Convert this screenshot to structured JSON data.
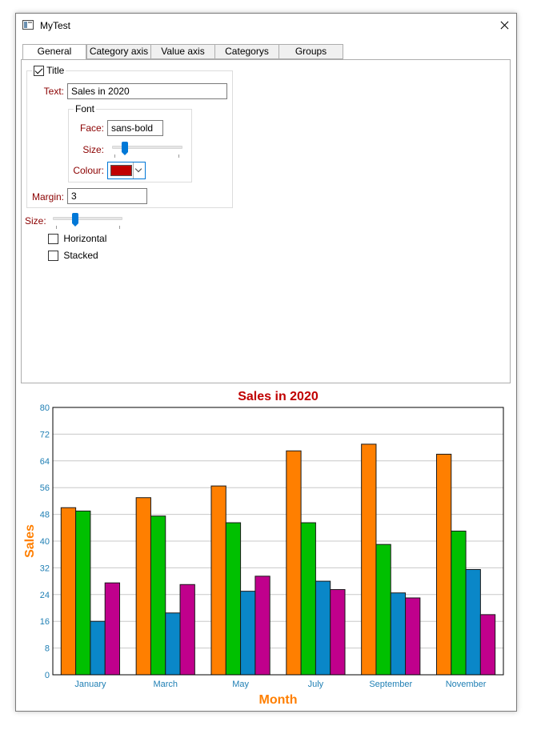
{
  "window": {
    "title": "MyTest"
  },
  "tabs": [
    {
      "label": "General"
    },
    {
      "label": "Category axis"
    },
    {
      "label": "Value axis"
    },
    {
      "label": "Categorys"
    },
    {
      "label": "Groups"
    }
  ],
  "title_group": {
    "checkbox_label": "Title",
    "checked": true,
    "text_label": "Text:",
    "text_value": "Sales in 2020",
    "font": {
      "group_label": "Font",
      "face_label": "Face:",
      "face_value": "sans-bold",
      "size_label": "Size:",
      "size_level": 0.15,
      "colour_label": "Colour:",
      "colour_value": "#c00000"
    },
    "margin_label": "Margin:",
    "margin_value": "3"
  },
  "size": {
    "label": "Size:",
    "level": 0.3
  },
  "horizontal": {
    "label": "Horizontal",
    "checked": false
  },
  "stacked": {
    "label": "Stacked",
    "checked": false
  },
  "colors": {
    "title": "#c00000",
    "axis_title": "#ff7f00",
    "tick_label": "#1f7fb4",
    "series": [
      "#ff7f00",
      "#00c000",
      "#0a87c8",
      "#c0008c"
    ]
  },
  "chart_data": {
    "type": "bar",
    "title": "Sales in 2020",
    "xlabel": "Month",
    "ylabel": "Sales",
    "ylim": [
      0,
      80
    ],
    "yticks": [
      0,
      8,
      16,
      24,
      32,
      40,
      48,
      56,
      64,
      72,
      80
    ],
    "categories": [
      "January",
      "March",
      "May",
      "July",
      "September",
      "November"
    ],
    "grid": true,
    "series": [
      {
        "values": [
          50,
          53,
          56.5,
          67,
          69,
          66
        ]
      },
      {
        "values": [
          49,
          47.5,
          45.5,
          45.5,
          39,
          43
        ]
      },
      {
        "values": [
          16,
          18.5,
          25,
          28,
          24.5,
          31.5
        ]
      },
      {
        "values": [
          27.5,
          27,
          29.5,
          25.5,
          23,
          18
        ]
      }
    ]
  }
}
